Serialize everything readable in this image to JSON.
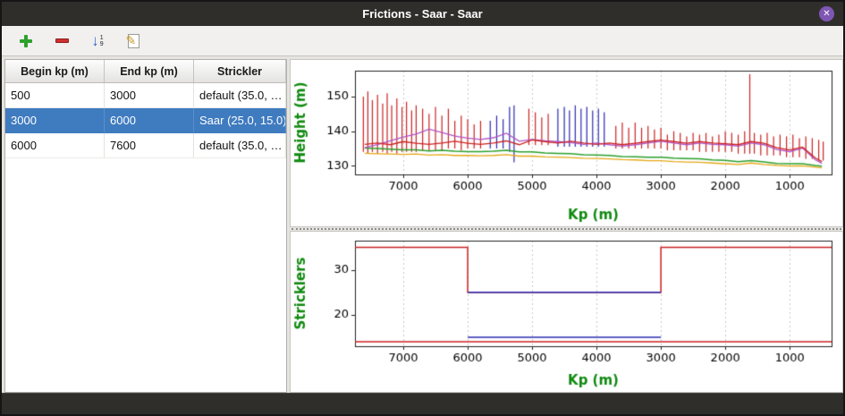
{
  "window": {
    "title": "Frictions - Saar - Saar",
    "close_glyph": "✕"
  },
  "toolbar": {
    "icons": [
      "plus-icon",
      "minus-icon",
      "sort-numeric-icon",
      "edit-icon"
    ],
    "sort_top": "1",
    "sort_bottom": "9"
  },
  "table": {
    "headers": [
      "Begin kp (m)",
      "End kp (m)",
      "Strickler"
    ],
    "rows": [
      {
        "begin": "500",
        "end": "3000",
        "strickler": "default (35.0, …",
        "selected": false
      },
      {
        "begin": "3000",
        "end": "6000",
        "strickler": "Saar (25.0, 15.0)",
        "selected": true
      },
      {
        "begin": "6000",
        "end": "7600",
        "strickler": "default (35.0, …",
        "selected": false
      }
    ]
  },
  "colors": {
    "selection": "#3f7bbf",
    "axis_label": "#108a10",
    "titlebar": "#302e2b",
    "close_button": "#7e57b2",
    "chart_red": "#cc2222",
    "chart_blue": "#2a2ab0",
    "chart_purple": "#b055c8",
    "chart_green": "#2ca02c",
    "chart_orange": "#e6a817"
  },
  "chart_data": [
    {
      "type": "scatter",
      "title": "",
      "xlabel": "Kp (m)",
      "ylabel": "Height (m)",
      "xlim": [
        7750,
        350
      ],
      "ylim": [
        127.5,
        157.5
      ],
      "xticks": [
        7000,
        6000,
        5000,
        4000,
        3000,
        2000,
        1000
      ],
      "yticks": [
        130,
        140,
        150
      ],
      "x_reversed": true,
      "grid": "vertical-dotted",
      "legend": "none",
      "bars": [
        {
          "name": "cross-section-extents-red",
          "color": "#cc2222",
          "points": [
            [
              7620,
              134,
              150
            ],
            [
              7550,
              133.5,
              151.5
            ],
            [
              7480,
              134,
              149
            ],
            [
              7400,
              133.5,
              150.5
            ],
            [
              7320,
              134,
              148
            ],
            [
              7250,
              133.5,
              151
            ],
            [
              7180,
              134,
              147.5
            ],
            [
              7100,
              133.5,
              149.5
            ],
            [
              7020,
              134,
              147
            ],
            [
              6950,
              134,
              148.5
            ],
            [
              6870,
              134,
              146
            ],
            [
              6800,
              134,
              147.5
            ],
            [
              6700,
              134.5,
              146.5
            ],
            [
              6600,
              134.5,
              145
            ],
            [
              6500,
              134.5,
              147
            ],
            [
              6400,
              134.5,
              144.5
            ],
            [
              6300,
              135,
              146.5
            ],
            [
              6200,
              135,
              143
            ],
            [
              6100,
              134.5,
              144.5
            ],
            [
              6000,
              135,
              143.5
            ],
            [
              5900,
              135,
              142
            ],
            [
              5800,
              135,
              143
            ],
            [
              5050,
              136,
              146.5
            ],
            [
              4950,
              136,
              145.5
            ],
            [
              4850,
              136,
              144
            ],
            [
              4750,
              136,
              145
            ],
            [
              3700,
              135,
              141.5
            ],
            [
              3600,
              135,
              142.5
            ],
            [
              3500,
              135,
              141
            ],
            [
              3400,
              135,
              142.5
            ],
            [
              3300,
              135,
              141
            ],
            [
              3200,
              135,
              141.5
            ],
            [
              3100,
              135,
              140.5
            ],
            [
              3000,
              135,
              141
            ],
            [
              2900,
              134.5,
              139
            ],
            [
              2800,
              134.5,
              140
            ],
            [
              2700,
              134.5,
              139.5
            ],
            [
              2600,
              134.5,
              138.5
            ],
            [
              2500,
              134.5,
              139.5
            ],
            [
              2400,
              134,
              139
            ],
            [
              2300,
              134,
              139.5
            ],
            [
              2200,
              134,
              138.5
            ],
            [
              2100,
              134,
              139
            ],
            [
              2000,
              134,
              140
            ],
            [
              1900,
              134,
              139.5
            ],
            [
              1800,
              133.5,
              139
            ],
            [
              1700,
              133.5,
              140
            ],
            [
              1620,
              133.5,
              156.5
            ],
            [
              1550,
              133.5,
              139.5
            ],
            [
              1450,
              133,
              139
            ],
            [
              1350,
              133,
              139.5
            ],
            [
              1250,
              133,
              138.5
            ],
            [
              1150,
              133,
              139
            ],
            [
              1050,
              132.5,
              138.5
            ],
            [
              950,
              132.5,
              139
            ],
            [
              850,
              132.5,
              138
            ],
            [
              750,
              132,
              138.5
            ],
            [
              650,
              132,
              138
            ],
            [
              550,
              131.5,
              137.5
            ],
            [
              480,
              131.5,
              137
            ]
          ]
        },
        {
          "name": "cross-section-extents-blue",
          "color": "#2a2ab0",
          "points": [
            [
              5650,
              135,
              143
            ],
            [
              5550,
              135,
              144.5
            ],
            [
              5450,
              135,
              143.5
            ],
            [
              5350,
              134,
              147
            ],
            [
              5280,
              131,
              147.5
            ],
            [
              4600,
              135.5,
              146.5
            ],
            [
              4500,
              135.5,
              147
            ],
            [
              4420,
              135.5,
              146
            ],
            [
              4330,
              135.5,
              147.5
            ],
            [
              4240,
              135.5,
              146.5
            ],
            [
              4150,
              135.5,
              147
            ],
            [
              4060,
              135.5,
              146
            ],
            [
              3970,
              135.5,
              146.5
            ],
            [
              3880,
              135.5,
              145.5
            ]
          ]
        }
      ],
      "series": [
        {
          "name": "level-orange",
          "color": "#e6a817",
          "width": 1.3,
          "x": [
            7600,
            7400,
            7200,
            7000,
            6800,
            6600,
            6400,
            6200,
            6000,
            5800,
            5600,
            5400,
            5200,
            5000,
            4800,
            4600,
            4400,
            4200,
            4000,
            3800,
            3600,
            3400,
            3200,
            3000,
            2800,
            2600,
            2400,
            2200,
            2000,
            1800,
            1600,
            1400,
            1200,
            1000,
            800,
            600,
            500
          ],
          "y": [
            133.6,
            133.5,
            133.4,
            133.3,
            133.4,
            133.1,
            133.2,
            133,
            133,
            132.9,
            133,
            133.2,
            132.8,
            132.8,
            132.6,
            132.5,
            132.4,
            132.2,
            132.1,
            132,
            131.8,
            131.7,
            131.5,
            131.5,
            131.2,
            131.1,
            131,
            130.8,
            130.6,
            130.4,
            130.8,
            130.4,
            130.1,
            129.9,
            130,
            129.6,
            129.4
          ]
        },
        {
          "name": "level-green",
          "color": "#2ca02c",
          "width": 1.5,
          "x": [
            7600,
            7400,
            7200,
            7000,
            6800,
            6600,
            6400,
            6200,
            6000,
            5800,
            5600,
            5400,
            5200,
            5000,
            4800,
            4600,
            4400,
            4200,
            4000,
            3800,
            3600,
            3400,
            3200,
            3000,
            2800,
            2600,
            2400,
            2200,
            2000,
            1800,
            1600,
            1400,
            1200,
            1000,
            800,
            600,
            500
          ],
          "y": [
            135.1,
            135,
            134.8,
            134.6,
            134.6,
            134.3,
            134.5,
            134.2,
            134.1,
            134.1,
            134.2,
            134.5,
            134,
            134,
            133.7,
            133.6,
            133.5,
            133.2,
            133.1,
            133,
            132.7,
            132.6,
            132.5,
            132.5,
            132.2,
            132.1,
            132,
            131.7,
            131.6,
            131.2,
            131.5,
            131.1,
            130.7,
            130.6,
            130.6,
            130.1,
            129.9
          ]
        },
        {
          "name": "level-purple",
          "color": "#b055c8",
          "width": 1.3,
          "x": [
            7600,
            7400,
            7200,
            7000,
            6800,
            6600,
            6400,
            6200,
            6000,
            5800,
            5600,
            5400,
            5200,
            5000,
            4800,
            4600,
            4400,
            4200,
            4000,
            3800,
            3600,
            3400,
            3200,
            3000,
            2800,
            2600,
            2400,
            2200,
            2000,
            1800,
            1600,
            1400,
            1200,
            1000,
            800,
            600,
            500
          ],
          "y": [
            135.2,
            136.1,
            137.2,
            138.3,
            139.2,
            140.6,
            139.6,
            138.6,
            138,
            137.6,
            138.1,
            139.4,
            137.1,
            137.6,
            137.2,
            137,
            136.7,
            136.2,
            136.6,
            136.1,
            135.7,
            136.1,
            136.6,
            137.1,
            136.6,
            136.1,
            136.6,
            136.2,
            136.1,
            135.7,
            136.6,
            136.1,
            134.7,
            134.1,
            135.1,
            131.7,
            130.7
          ]
        },
        {
          "name": "level-red",
          "color": "#cc2222",
          "width": 1.3,
          "x": [
            7600,
            7400,
            7200,
            7000,
            6800,
            6600,
            6400,
            6200,
            6000,
            5800,
            5600,
            5400,
            5200,
            5000,
            4800,
            4600,
            4400,
            4200,
            4000,
            3800,
            3600,
            3400,
            3200,
            3000,
            2800,
            2600,
            2400,
            2200,
            2000,
            1800,
            1600,
            1400,
            1200,
            1000,
            800,
            600,
            500
          ],
          "y": [
            136.2,
            136.6,
            136.1,
            137,
            136.5,
            136.2,
            136.6,
            137.1,
            136.5,
            136.2,
            136.6,
            137.2,
            136.1,
            137.5,
            137,
            136.6,
            137.1,
            136.6,
            136.2,
            136.6,
            136.1,
            136.5,
            137,
            137.4,
            137,
            136.5,
            137,
            136.6,
            136.4,
            136.1,
            137,
            136.5,
            135.2,
            134.6,
            135.4,
            132.2,
            131.2
          ]
        }
      ]
    },
    {
      "type": "line",
      "title": "",
      "xlabel": "Kp (m)",
      "ylabel": "Stricklers",
      "xlim": [
        7750,
        350
      ],
      "ylim": [
        13,
        36.5
      ],
      "xticks": [
        7000,
        6000,
        5000,
        4000,
        3000,
        2000,
        1000
      ],
      "yticks": [
        20,
        30
      ],
      "x_reversed": true,
      "grid": "vertical-dotted",
      "legend": "none",
      "series": [
        {
          "name": "strickler-main-default",
          "color": "#cc2222",
          "width": 1.5,
          "x": [
            7750,
            6000,
            6000,
            3000,
            3000,
            350
          ],
          "y": [
            35,
            35,
            25,
            25,
            35,
            35
          ]
        },
        {
          "name": "strickler-floodplain-default",
          "color": "#cc2222",
          "width": 1.5,
          "x": [
            7750,
            350
          ],
          "y": [
            14,
            14
          ]
        },
        {
          "name": "strickler-main-saar",
          "color": "#2a2ab0",
          "width": 1.5,
          "x": [
            6000,
            3000
          ],
          "y": [
            25,
            25
          ]
        },
        {
          "name": "strickler-floodplain-saar",
          "color": "#2a2ab0",
          "width": 1.5,
          "x": [
            6000,
            3000
          ],
          "y": [
            15,
            15
          ]
        }
      ]
    }
  ]
}
